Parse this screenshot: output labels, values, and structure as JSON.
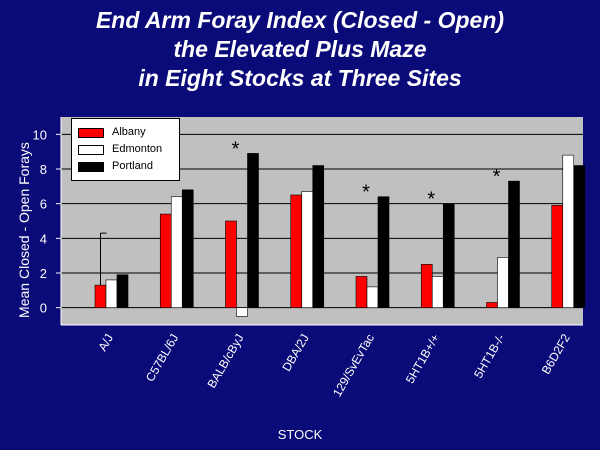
{
  "chart_data": {
    "type": "bar",
    "title": [
      "End Arm Foray Index (Closed - Open)",
      "the Elevated Plus Maze",
      "in Eight Stocks at Three Sites"
    ],
    "xlabel": "STOCK",
    "ylabel": "Mean Closed - Open Forays",
    "ylim": [
      -1,
      11
    ],
    "yticks": [
      "0",
      "2",
      "4",
      "6",
      "8",
      "10"
    ],
    "grid": true,
    "legend_position": "top-left",
    "categories": [
      "A/J",
      "C57BL/6J",
      "BALB/cByJ",
      "DBA/2J",
      "129/SvEvTac",
      "5HT1B+/+",
      "5HT1B-/-",
      "B6D2F2"
    ],
    "series": [
      {
        "name": "Albany",
        "color": "#ff0000",
        "values": [
          1.3,
          5.4,
          5.0,
          6.5,
          1.8,
          2.5,
          0.3,
          5.9
        ]
      },
      {
        "name": "Edmonton",
        "color": "#ffffff",
        "values": [
          1.6,
          6.4,
          -0.5,
          6.7,
          1.2,
          1.8,
          2.9,
          8.8
        ]
      },
      {
        "name": "Portland",
        "color": "#000000",
        "values": [
          1.9,
          6.8,
          8.9,
          8.2,
          6.4,
          6.0,
          7.3,
          8.2
        ]
      }
    ],
    "error_bars": [
      {
        "category": "A/J",
        "series": "Albany",
        "upper": 4.3
      }
    ],
    "significance": [
      {
        "category": "BALB/cByJ",
        "label": "*"
      },
      {
        "category": "129/SvEvTac",
        "label": "*"
      },
      {
        "category": "5HT1B+/+",
        "label": "*"
      },
      {
        "category": "5HT1B-/-",
        "label": "*"
      }
    ],
    "colors": {
      "background": "#0a0a78",
      "plot_area": "#c0c0c0",
      "text": "#ffffff"
    }
  }
}
